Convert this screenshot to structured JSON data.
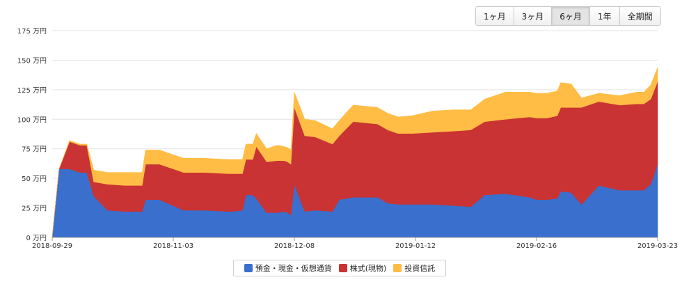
{
  "range_buttons": [
    {
      "label": "1ヶ月",
      "active": false
    },
    {
      "label": "3ヶ月",
      "active": false
    },
    {
      "label": "6ヶ月",
      "active": true
    },
    {
      "label": "1年",
      "active": false
    },
    {
      "label": "全期間",
      "active": false
    }
  ],
  "chart_data": {
    "type": "area",
    "stacked": true,
    "x_start": "2018-09-29",
    "x_end": "2019-03-23",
    "x_ticks": [
      "2018-09-29",
      "2018-11-03",
      "2018-12-08",
      "2019-01-12",
      "2019-02-16",
      "2019-03-23"
    ],
    "y_ticks": [
      "0 万円",
      "25 万円",
      "50 万円",
      "75 万円",
      "100 万円",
      "125 万円",
      "150 万円",
      "175 万円"
    ],
    "ylim": [
      0,
      175
    ],
    "grid": true,
    "legend_position": "bottom",
    "series": [
      {
        "name": "預金・現金・仮想通貨",
        "color": "#3a6fcd",
        "x": [
          "2018-09-29",
          "2018-10-01",
          "2018-10-04",
          "2018-10-07",
          "2018-10-08",
          "2018-10-09",
          "2018-10-11",
          "2018-10-15",
          "2018-10-20",
          "2018-10-24",
          "2018-10-25",
          "2018-10-26",
          "2018-10-30",
          "2018-11-06",
          "2018-11-12",
          "2018-11-19",
          "2018-11-20",
          "2018-11-23",
          "2018-11-24",
          "2018-11-26",
          "2018-11-27",
          "2018-11-30",
          "2018-12-03",
          "2018-12-05",
          "2018-12-06",
          "2018-12-07",
          "2018-12-08",
          "2018-12-11",
          "2018-12-14",
          "2018-12-19",
          "2018-12-21",
          "2018-12-25",
          "2019-01-01",
          "2019-01-04",
          "2019-01-07",
          "2019-01-11",
          "2019-01-17",
          "2019-01-23",
          "2019-01-28",
          "2019-02-01",
          "2019-02-07",
          "2019-02-14",
          "2019-02-16",
          "2019-02-19",
          "2019-02-22",
          "2019-02-23",
          "2019-02-26",
          "2019-03-01",
          "2019-03-06",
          "2019-03-12",
          "2019-03-17",
          "2019-03-19",
          "2019-03-21",
          "2019-03-23"
        ],
        "y": [
          0,
          58,
          58,
          55,
          55,
          55,
          35,
          23,
          22,
          22,
          22,
          32,
          32,
          23,
          23,
          22,
          22,
          23,
          36,
          36,
          33,
          21,
          21,
          22,
          21,
          19,
          45,
          22,
          23,
          22,
          32,
          34,
          34,
          29,
          28,
          28,
          28,
          27,
          26,
          36,
          37,
          34,
          32,
          32,
          33,
          39,
          38,
          28,
          44,
          40,
          40,
          40,
          45,
          62
        ]
      },
      {
        "name": "株式(現物)",
        "color": "#c93333",
        "x": [
          "2018-09-29",
          "2018-10-01",
          "2018-10-04",
          "2018-10-07",
          "2018-10-08",
          "2018-10-09",
          "2018-10-11",
          "2018-10-15",
          "2018-10-20",
          "2018-10-24",
          "2018-10-25",
          "2018-10-26",
          "2018-10-30",
          "2018-11-06",
          "2018-11-12",
          "2018-11-19",
          "2018-11-20",
          "2018-11-23",
          "2018-11-24",
          "2018-11-26",
          "2018-11-27",
          "2018-11-30",
          "2018-12-03",
          "2018-12-05",
          "2018-12-06",
          "2018-12-07",
          "2018-12-08",
          "2018-12-11",
          "2018-12-14",
          "2018-12-19",
          "2018-12-21",
          "2018-12-25",
          "2019-01-01",
          "2019-01-04",
          "2019-01-07",
          "2019-01-11",
          "2019-01-17",
          "2019-01-23",
          "2019-01-28",
          "2019-02-01",
          "2019-02-07",
          "2019-02-14",
          "2019-02-16",
          "2019-02-19",
          "2019-02-22",
          "2019-02-23",
          "2019-02-26",
          "2019-03-01",
          "2019-03-06",
          "2019-03-12",
          "2019-03-17",
          "2019-03-19",
          "2019-03-21",
          "2019-03-23"
        ],
        "y": [
          0,
          0,
          23,
          23,
          23,
          23,
          12,
          22,
          22,
          22,
          22,
          30,
          30,
          32,
          32,
          32,
          32,
          31,
          30,
          30,
          44,
          43,
          44,
          43,
          43,
          43,
          65,
          64,
          62,
          57,
          54,
          64,
          62,
          62,
          60,
          60,
          61,
          63,
          65,
          62,
          63,
          68,
          69,
          69,
          70,
          71,
          72,
          82,
          71,
          72,
          73,
          73,
          72,
          70
        ]
      },
      {
        "name": "投資信託",
        "color": "#ffbd45",
        "x": [
          "2018-09-29",
          "2018-10-01",
          "2018-10-04",
          "2018-10-07",
          "2018-10-08",
          "2018-10-09",
          "2018-10-11",
          "2018-10-15",
          "2018-10-20",
          "2018-10-24",
          "2018-10-25",
          "2018-10-26",
          "2018-10-30",
          "2018-11-06",
          "2018-11-12",
          "2018-11-19",
          "2018-11-20",
          "2018-11-23",
          "2018-11-24",
          "2018-11-26",
          "2018-11-27",
          "2018-11-30",
          "2018-12-03",
          "2018-12-05",
          "2018-12-06",
          "2018-12-07",
          "2018-12-08",
          "2018-12-11",
          "2018-12-14",
          "2018-12-19",
          "2018-12-21",
          "2018-12-25",
          "2019-01-01",
          "2019-01-04",
          "2019-01-07",
          "2019-01-11",
          "2019-01-17",
          "2019-01-23",
          "2019-01-28",
          "2019-02-01",
          "2019-02-07",
          "2019-02-14",
          "2019-02-16",
          "2019-02-19",
          "2019-02-22",
          "2019-02-23",
          "2019-02-26",
          "2019-03-01",
          "2019-03-06",
          "2019-03-12",
          "2019-03-17",
          "2019-03-19",
          "2019-03-21",
          "2019-03-23"
        ],
        "y": [
          0,
          0,
          1,
          1,
          1,
          1,
          10,
          10,
          11,
          11,
          11,
          12,
          12,
          12,
          12,
          12,
          12,
          12,
          13,
          13,
          11,
          11,
          13,
          12,
          12,
          12,
          13,
          14,
          14,
          13,
          13,
          14,
          14,
          14,
          14,
          15,
          18,
          18,
          17,
          19,
          23,
          21,
          21,
          21,
          21,
          21,
          20,
          8,
          7,
          8,
          10,
          10,
          12,
          12
        ]
      }
    ]
  }
}
